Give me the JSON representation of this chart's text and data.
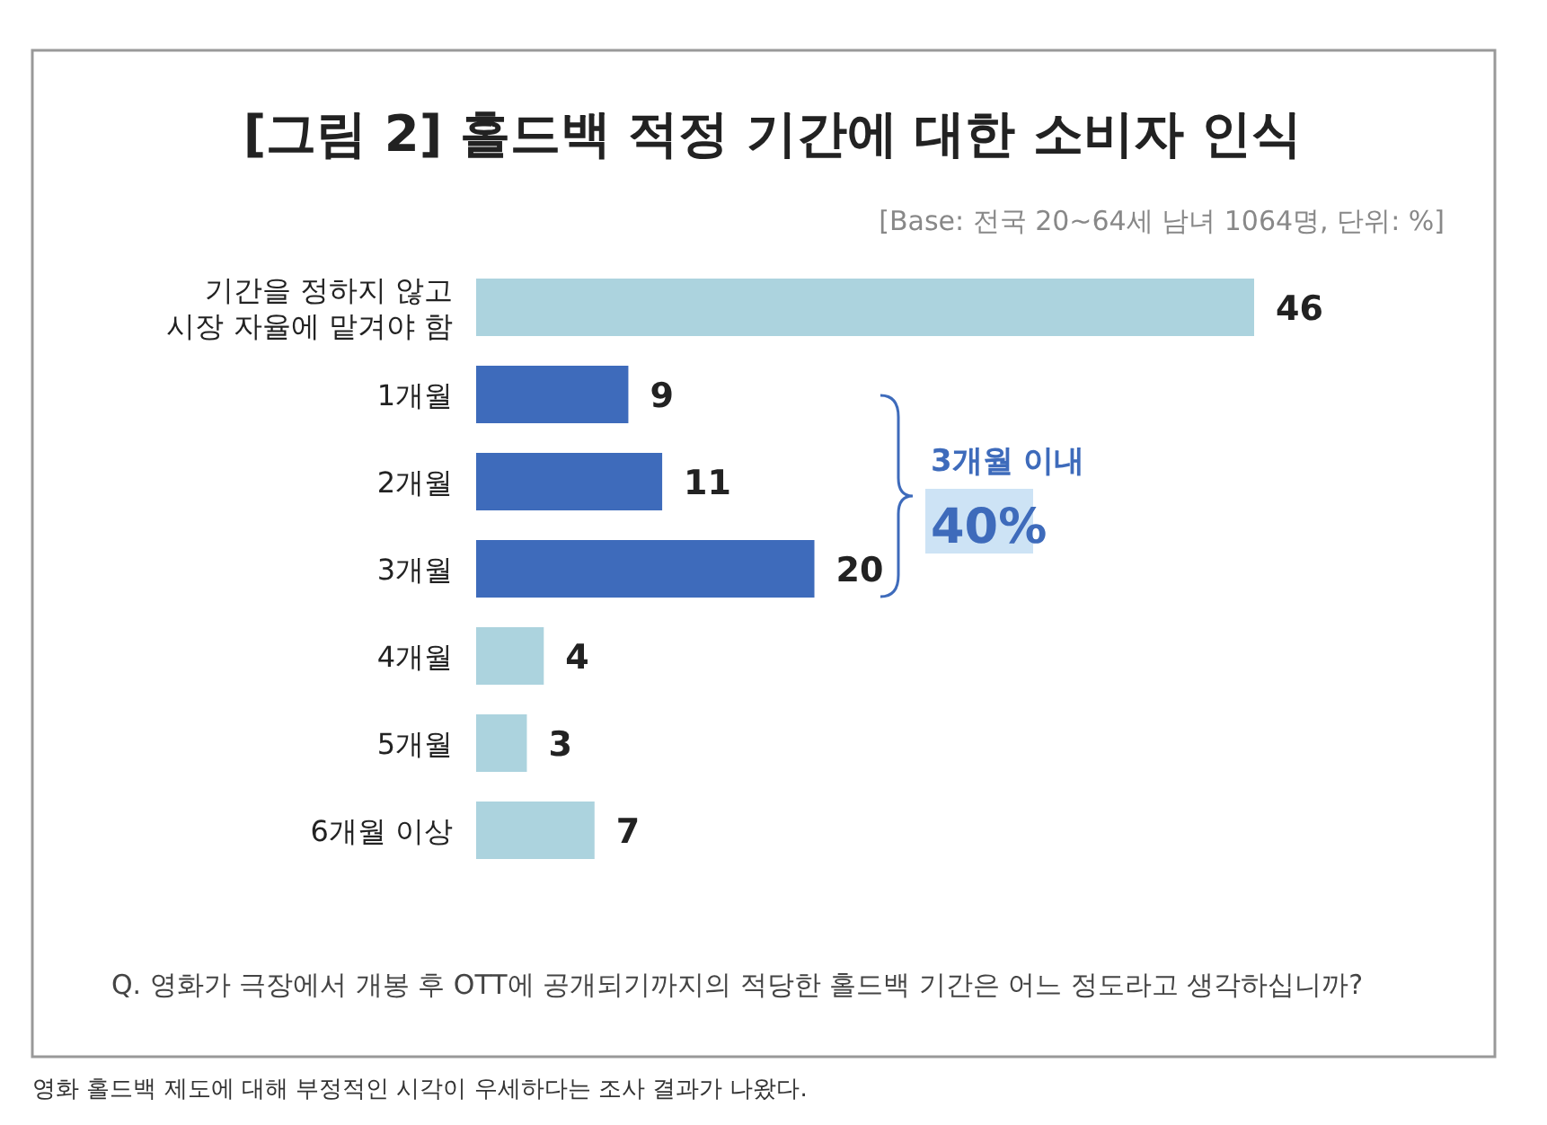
{
  "chart_data": {
    "type": "bar",
    "orientation": "horizontal",
    "data_labels": true,
    "title": "[그림 2] 홀드백 적정 기간에 대한 소비자 인식",
    "subtitle": "[Base: 전국 20~64세 남녀 1064명, 단위: %]",
    "categories": [
      "기간을 정하지 않고\n시장 자율에 맡겨야 함",
      "1개월",
      "2개월",
      "3개월",
      "4개월",
      "5개월",
      "6개월 이상"
    ],
    "values": [
      46,
      9,
      11,
      20,
      4,
      3,
      7
    ],
    "colors": [
      "#acd3de",
      "#3e6bbb",
      "#3e6bbb",
      "#3e6bbb",
      "#acd3de",
      "#acd3de",
      "#acd3de"
    ],
    "annotations": [
      "3개월 이내",
      "40%",
      "Q. 영화가 극장에서 개봉 후 OTT에 공개되기까지의 적당한 홀드백 기간은 어느 정도라고 생각하십니까?",
      "영화 홀드백 제도에 대해 부정적인 시각이 우세하다는 조사 결과가 나왔다."
    ]
  }
}
